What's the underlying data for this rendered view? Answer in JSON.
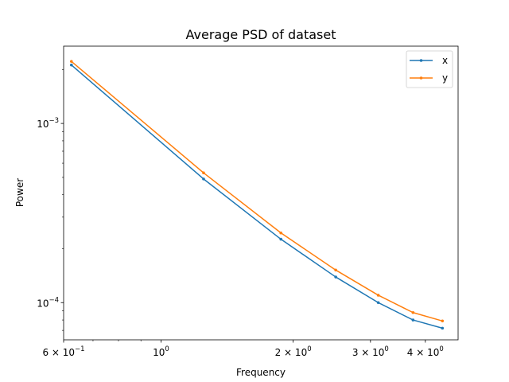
{
  "chart_data": {
    "type": "line",
    "title": "Average PSD of dataset",
    "xlabel": "Frequency",
    "ylabel": "Power",
    "xscale": "log",
    "yscale": "log",
    "xlim": [
      0.6,
      4.75
    ],
    "ylim": [
      6.2e-05,
      0.0027
    ],
    "grid": false,
    "legend_position": "top-right",
    "x": [
      0.625,
      1.25,
      1.875,
      2.5,
      3.125,
      3.75,
      4.375
    ],
    "series": [
      {
        "name": "x",
        "color": "#1f77b4",
        "values": [
          0.00212,
          0.00049,
          0.000226,
          0.000139,
          0.0001,
          8e-05,
          7.2e-05
        ]
      },
      {
        "name": "y",
        "color": "#ff7f0e",
        "values": [
          0.00222,
          0.00053,
          0.000245,
          0.000152,
          0.00011,
          8.8e-05,
          7.9e-05
        ]
      }
    ],
    "x_major_ticks": [
      {
        "value": 0.6,
        "base": "6 × 10",
        "exp": "−1"
      },
      {
        "value": 1,
        "base": "10",
        "exp": "0"
      },
      {
        "value": 2,
        "base": "2 × 10",
        "exp": "0"
      },
      {
        "value": 3,
        "base": "3 × 10",
        "exp": "0"
      },
      {
        "value": 4,
        "base": "4 × 10",
        "exp": "0"
      }
    ],
    "x_minor_ticks": [
      0.7,
      0.8,
      0.9
    ],
    "y_major_ticks": [
      {
        "value": 0.001,
        "base": "10",
        "exp": "−3"
      },
      {
        "value": 0.0001,
        "base": "10",
        "exp": "−4"
      }
    ],
    "y_minor_ticks": [
      7e-05,
      8e-05,
      9e-05,
      0.0002,
      0.0003,
      0.0004,
      0.0005,
      0.0006,
      0.0007,
      0.0008,
      0.0009,
      0.002
    ]
  }
}
